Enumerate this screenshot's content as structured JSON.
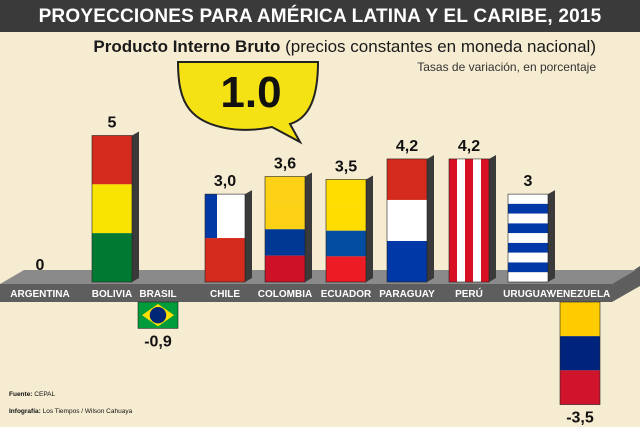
{
  "title": "PROYECCIONES PARA AMÉRICA LATINA Y EL CARIBE, 2015",
  "subtitle_bold": "Producto Interno Bruto",
  "subtitle_rest": "(precios constantes en moneda nacional)",
  "unit_note": "Tasas de variación, en porcentaje",
  "headline_value": "1.0",
  "source_label": "Fuente:",
  "source_value": "CEPAL",
  "credit_label": "Infografía:",
  "credit_value": "Los Tiempos / Wilson Cahuaya",
  "colors": {
    "background": "#f6ecd2",
    "title_bar": "#3a3a3a",
    "axis_band": "#5e5e5e",
    "bubble": "#f5e214"
  },
  "chart_data": {
    "type": "bar",
    "title": "PROYECCIONES PARA AMÉRICA LATINA Y EL CARIBE, 2015",
    "ylabel": "Tasas de variación, en porcentaje",
    "ylim": [
      -3.5,
      5
    ],
    "grid": false,
    "categories": [
      "ARGENTINA",
      "BOLIVIA",
      "BRASIL",
      "CHILE",
      "COLOMBIA",
      "ECUADOR",
      "PARAGUAY",
      "PERÚ",
      "URUGUAY",
      "VENEZUELA"
    ],
    "values": [
      0,
      5,
      -0.9,
      3.0,
      3.6,
      3.5,
      4.2,
      4.2,
      3,
      -3.5
    ],
    "value_labels": [
      "0",
      "5",
      "-0,9",
      "3,0",
      "3,6",
      "3,5",
      "4,2",
      "4,2",
      "3",
      "-3,5"
    ],
    "flags": [
      "argentina-flag",
      "bolivia-flag",
      "brazil-flag",
      "chile-flag",
      "colombia-flag",
      "ecuador-flag",
      "paraguay-flag",
      "peru-flag",
      "uruguay-flag",
      "venezuela-flag"
    ]
  }
}
